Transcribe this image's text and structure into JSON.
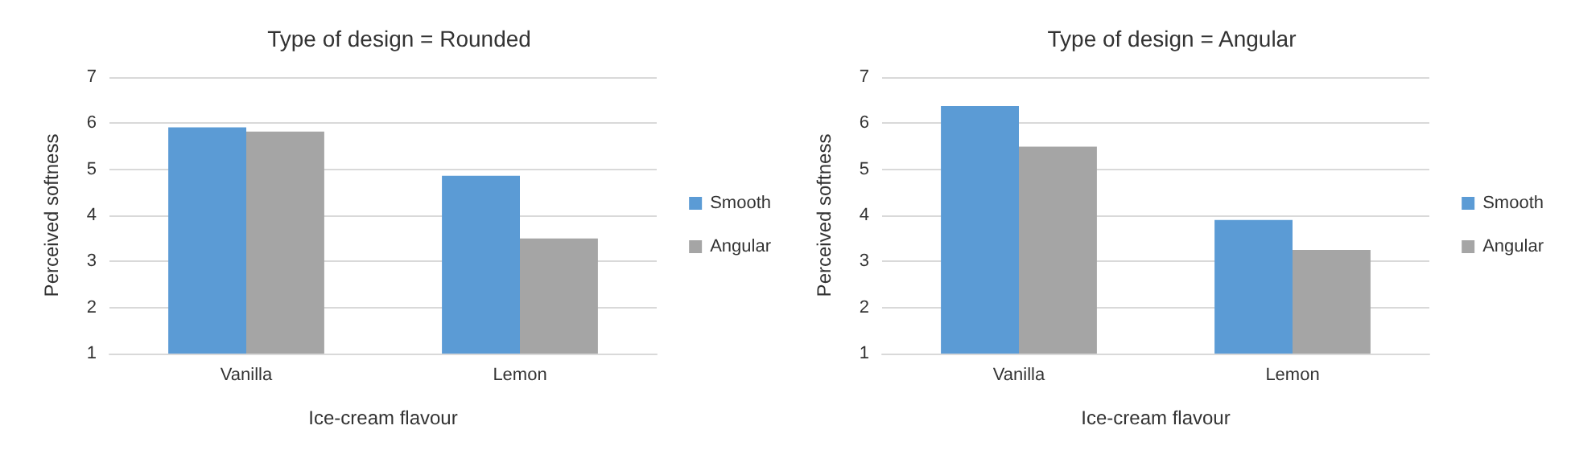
{
  "chart_data": [
    {
      "type": "bar",
      "title": "Type of design = Rounded",
      "xlabel": "Ice-cream flavour",
      "ylabel": "Perceived softness",
      "categories": [
        "Vanilla",
        "Lemon"
      ],
      "series": [
        {
          "name": "Smooth",
          "color": "#5b9bd5",
          "values": [
            5.91,
            4.86
          ]
        },
        {
          "name": "Angular",
          "color": "#a5a5a5",
          "values": [
            5.82,
            3.5
          ]
        }
      ],
      "ylim": [
        1,
        7
      ],
      "yticks": [
        1,
        2,
        3,
        4,
        5,
        6,
        7
      ],
      "grid": "y",
      "legend": "right"
    },
    {
      "type": "bar",
      "title": "Type of design = Angular",
      "xlabel": "Ice-cream flavour",
      "ylabel": "Perceived softness",
      "categories": [
        "Vanilla",
        "Lemon"
      ],
      "series": [
        {
          "name": "Smooth",
          "color": "#5b9bd5",
          "values": [
            6.37,
            3.9
          ]
        },
        {
          "name": "Angular",
          "color": "#a5a5a5",
          "values": [
            5.49,
            3.25
          ]
        }
      ],
      "ylim": [
        1,
        7
      ],
      "yticks": [
        1,
        2,
        3,
        4,
        5,
        6,
        7
      ],
      "grid": "y",
      "legend": "right"
    }
  ]
}
